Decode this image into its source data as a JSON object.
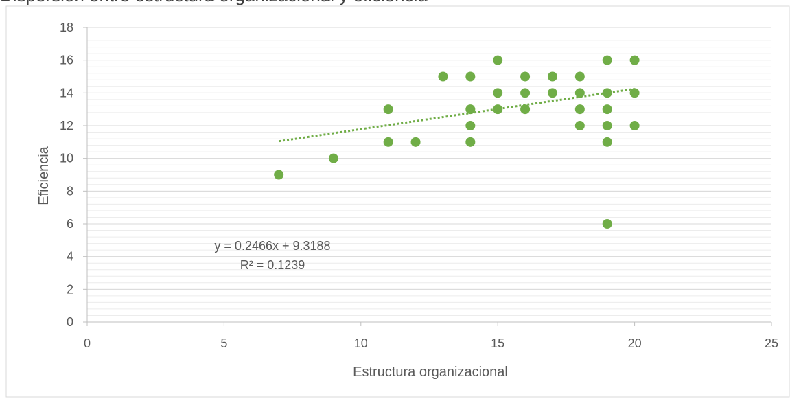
{
  "chart_data": {
    "type": "scatter",
    "title": "Dispersión entre estructura organizacional y eficiencia",
    "xlabel": "Estructura organizacional",
    "ylabel": "Eficiencia",
    "xlim": [
      0,
      25
    ],
    "ylim": [
      0,
      18
    ],
    "x_ticks": [
      0,
      5,
      10,
      15,
      20,
      25
    ],
    "y_ticks": [
      0,
      2,
      4,
      6,
      8,
      10,
      12,
      14,
      16,
      18
    ],
    "grid": true,
    "points": [
      {
        "x": 7,
        "y": 9
      },
      {
        "x": 9,
        "y": 10
      },
      {
        "x": 11,
        "y": 13
      },
      {
        "x": 11,
        "y": 11
      },
      {
        "x": 12,
        "y": 11
      },
      {
        "x": 13,
        "y": 15
      },
      {
        "x": 14,
        "y": 15
      },
      {
        "x": 14,
        "y": 13
      },
      {
        "x": 14,
        "y": 12
      },
      {
        "x": 14,
        "y": 11
      },
      {
        "x": 15,
        "y": 16
      },
      {
        "x": 15,
        "y": 14
      },
      {
        "x": 15,
        "y": 13
      },
      {
        "x": 16,
        "y": 15
      },
      {
        "x": 16,
        "y": 14
      },
      {
        "x": 16,
        "y": 13
      },
      {
        "x": 17,
        "y": 15
      },
      {
        "x": 17,
        "y": 14
      },
      {
        "x": 18,
        "y": 15
      },
      {
        "x": 18,
        "y": 14
      },
      {
        "x": 18,
        "y": 13
      },
      {
        "x": 18,
        "y": 12
      },
      {
        "x": 19,
        "y": 16
      },
      {
        "x": 19,
        "y": 14
      },
      {
        "x": 19,
        "y": 13
      },
      {
        "x": 19,
        "y": 12
      },
      {
        "x": 19,
        "y": 11
      },
      {
        "x": 19,
        "y": 6
      },
      {
        "x": 20,
        "y": 16
      },
      {
        "x": 20,
        "y": 14
      },
      {
        "x": 20,
        "y": 12
      }
    ],
    "trendline": {
      "slope": 0.2466,
      "intercept": 9.3188,
      "x_range": [
        7,
        20
      ]
    },
    "equation_label": "y = 0.2466x + 9.3188",
    "r2_label": "R² = 0.1239",
    "colors": {
      "marker": "#70ad47",
      "trendline": "#70ad47",
      "gridline": "#d9d9d9",
      "axis": "#bfbfbf",
      "text": "#595959",
      "border": "#d9d9d9"
    }
  }
}
